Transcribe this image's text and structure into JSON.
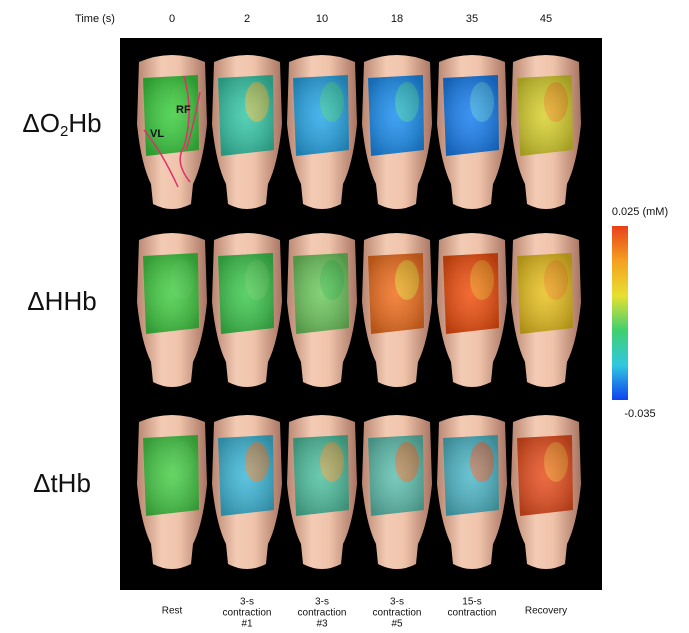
{
  "time_header": {
    "label": "Time (s)",
    "times": [
      0,
      2,
      10,
      18,
      35,
      45
    ]
  },
  "rows": [
    {
      "parts": [
        "ΔO",
        "2",
        "Hb"
      ]
    },
    {
      "parts": [
        "ΔHHb"
      ]
    },
    {
      "parts": [
        "ΔtHb"
      ]
    }
  ],
  "annotations": {
    "rf": "RF",
    "vl": "VL"
  },
  "colorbar": {
    "max_label": "0.025 (mM)",
    "min_label": "-0.035"
  },
  "captions": [
    [
      "Rest"
    ],
    [
      "3-s",
      "contraction",
      "#1"
    ],
    [
      "3-s",
      "contraction",
      "#3"
    ],
    [
      "3-s",
      "contraction",
      "#5"
    ],
    [
      "15-s",
      "contraction"
    ],
    [
      "Recovery"
    ]
  ]
}
